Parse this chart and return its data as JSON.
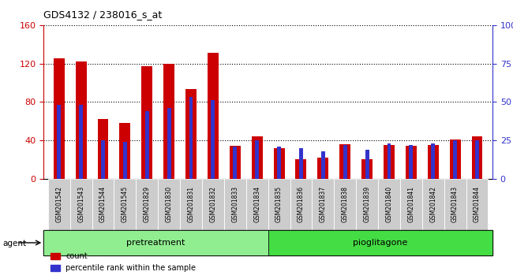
{
  "title": "GDS4132 / 238016_s_at",
  "samples": [
    "GSM201542",
    "GSM201543",
    "GSM201544",
    "GSM201545",
    "GSM201829",
    "GSM201830",
    "GSM201831",
    "GSM201832",
    "GSM201833",
    "GSM201834",
    "GSM201835",
    "GSM201836",
    "GSM201837",
    "GSM201838",
    "GSM201839",
    "GSM201840",
    "GSM201841",
    "GSM201842",
    "GSM201843",
    "GSM201844"
  ],
  "counts": [
    125,
    122,
    62,
    58,
    117,
    120,
    93,
    131,
    34,
    44,
    32,
    20,
    22,
    36,
    20,
    35,
    34,
    35,
    41,
    44
  ],
  "percentiles": [
    48,
    48,
    25,
    24,
    44,
    46,
    53,
    51,
    21,
    25,
    21,
    20,
    18,
    22,
    19,
    23,
    22,
    23,
    25,
    25
  ],
  "group1_label": "pretreatment",
  "group2_label": "pioglitagone",
  "group1_count": 10,
  "group2_count": 10,
  "agent_label": "agent",
  "ylim_left": [
    0,
    160
  ],
  "ylim_right": [
    0,
    100
  ],
  "yticks_left": [
    0,
    40,
    80,
    120,
    160
  ],
  "yticks_right": [
    0,
    25,
    50,
    75,
    100
  ],
  "bar_color_red": "#cc0000",
  "bar_color_blue": "#3333cc",
  "group1_bg": "#90ee90",
  "group2_bg": "#44dd44",
  "xticklabel_bg": "#cccccc",
  "legend_count_label": "count",
  "legend_pct_label": "percentile rank within the sample",
  "gridline_color": "#000000"
}
